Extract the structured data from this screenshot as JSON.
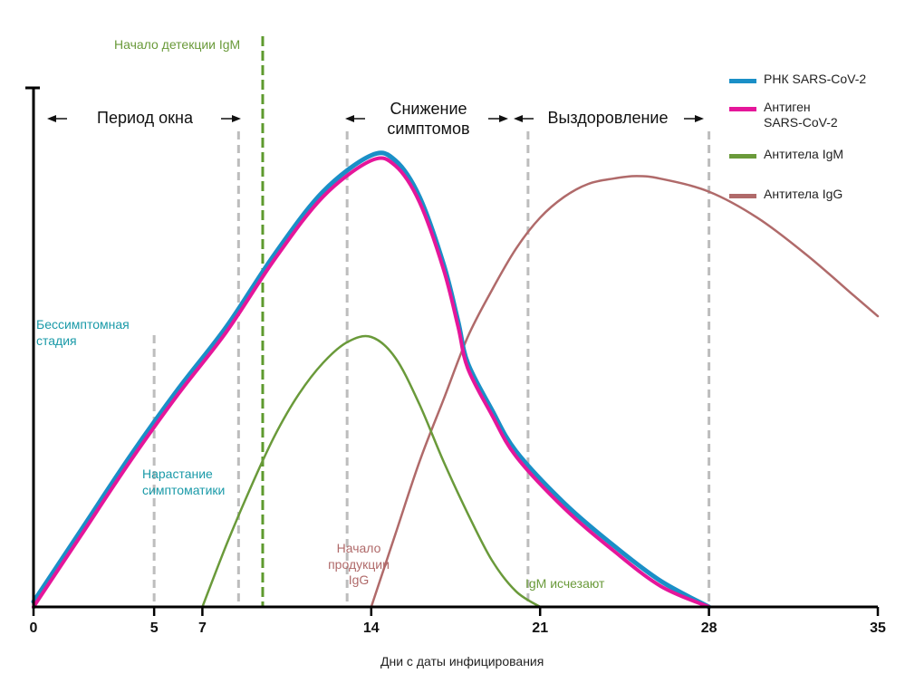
{
  "chart_data": {
    "type": "line",
    "xlabel": "Дни с даты инфицирования",
    "xlim": [
      0,
      35
    ],
    "ylim": [
      0,
      100
    ],
    "x_ticks": [
      0,
      5,
      7,
      14,
      21,
      28,
      35
    ],
    "colors": {
      "rna": "#1a8fc7",
      "antigen": "#e5169a",
      "igm": "#6a9a3a",
      "igg": "#b06a6a",
      "cyan_text": "#1a9aa8",
      "igm_marker": "#5e9a2e"
    },
    "series": [
      {
        "name": "РНК SARS-CoV-2",
        "key": "rna",
        "points": [
          [
            0,
            1
          ],
          [
            2,
            15
          ],
          [
            4,
            29
          ],
          [
            6,
            42
          ],
          [
            8,
            54
          ],
          [
            10,
            68
          ],
          [
            12,
            80
          ],
          [
            14,
            87
          ],
          [
            15,
            86
          ],
          [
            16,
            79
          ],
          [
            17,
            66
          ],
          [
            17.6,
            55
          ],
          [
            18,
            47
          ],
          [
            19,
            38
          ],
          [
            20,
            30
          ],
          [
            22,
            20
          ],
          [
            24,
            12
          ],
          [
            26,
            5
          ],
          [
            28,
            0
          ]
        ]
      },
      {
        "name": "Антиген SARS-CoV-2",
        "key": "antigen",
        "points": [
          [
            0,
            0
          ],
          [
            2,
            14
          ],
          [
            4,
            28
          ],
          [
            6,
            41
          ],
          [
            8,
            53
          ],
          [
            10,
            67
          ],
          [
            12,
            79
          ],
          [
            14,
            86
          ],
          [
            15,
            85
          ],
          [
            16,
            78
          ],
          [
            17,
            65
          ],
          [
            17.6,
            54
          ],
          [
            18,
            46
          ],
          [
            19,
            37
          ],
          [
            20,
            29
          ],
          [
            22,
            19
          ],
          [
            24,
            11
          ],
          [
            26,
            4
          ],
          [
            28,
            0
          ]
        ]
      },
      {
        "name": "Антитела IgM",
        "key": "igm",
        "points": [
          [
            7,
            0
          ],
          [
            8,
            12
          ],
          [
            9,
            23
          ],
          [
            10,
            33
          ],
          [
            11,
            41
          ],
          [
            12,
            47
          ],
          [
            13,
            51
          ],
          [
            14,
            52
          ],
          [
            15,
            48
          ],
          [
            16,
            39
          ],
          [
            17,
            28
          ],
          [
            18,
            18
          ],
          [
            19,
            9
          ],
          [
            20,
            3
          ],
          [
            21,
            0
          ]
        ]
      },
      {
        "name": "Антитела IgG",
        "key": "igg",
        "points": [
          [
            14,
            0
          ],
          [
            15,
            14
          ],
          [
            16,
            28
          ],
          [
            17,
            40
          ],
          [
            18,
            52
          ],
          [
            19,
            61
          ],
          [
            20,
            69
          ],
          [
            21,
            75
          ],
          [
            22,
            79
          ],
          [
            23,
            81.5
          ],
          [
            24,
            82.5
          ],
          [
            25,
            83
          ],
          [
            26,
            82.5
          ],
          [
            28,
            80
          ],
          [
            30,
            75
          ],
          [
            32,
            68
          ],
          [
            34,
            60
          ],
          [
            35,
            56
          ]
        ]
      }
    ],
    "dashed_markers": [
      5,
      8.5,
      13,
      20.5,
      28
    ],
    "igm_detection_day": 9.5,
    "legend_position": "top-right"
  },
  "labels": {
    "igm_start": "Начало детекции IgM",
    "window_period": "Период окна",
    "symptom_decline": "Снижение\nсимптомов",
    "recovery": "Выздоровление",
    "asymptomatic": "Бессимптомная\nстадия",
    "symptom_rise": "Нарастание\nсимптоматики",
    "igg_start": "Начало\nпродукции\nIgG",
    "igm_disappear": "IgM исчезают"
  },
  "legend": [
    {
      "key": "rna",
      "label": "РНК SARS-CoV-2"
    },
    {
      "key": "antigen",
      "label": "Антиген\nSARS-CoV-2"
    },
    {
      "key": "igm",
      "label": "Антитела IgM"
    },
    {
      "key": "igg",
      "label": "Антитела IgG"
    }
  ]
}
